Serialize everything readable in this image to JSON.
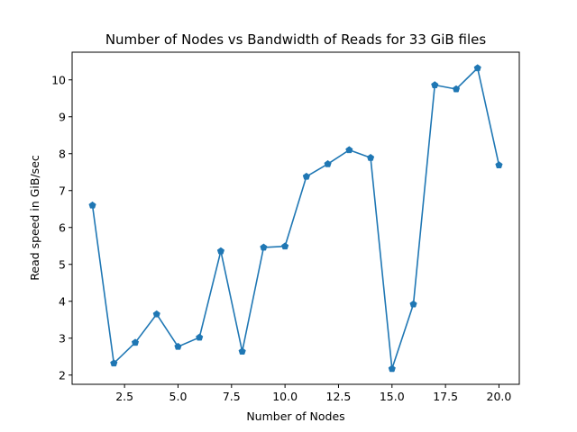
{
  "chart_data": {
    "type": "line",
    "title": "Number of Nodes vs Bandwidth of Reads for 33 GiB files",
    "xlabel": "Number of Nodes",
    "ylabel": "Read speed in GiB/sec",
    "xlim": [
      0.05,
      20.95
    ],
    "ylim": [
      1.75,
      10.75
    ],
    "xticks": [
      2.5,
      5.0,
      7.5,
      10.0,
      12.5,
      15.0,
      17.5,
      20.0
    ],
    "xtick_labels": [
      "2.5",
      "5.0",
      "7.5",
      "10.0",
      "12.5",
      "15.0",
      "17.5",
      "20.0"
    ],
    "yticks": [
      2,
      3,
      4,
      5,
      6,
      7,
      8,
      9,
      10
    ],
    "ytick_labels": [
      "2",
      "3",
      "4",
      "5",
      "6",
      "7",
      "8",
      "9",
      "10"
    ],
    "grid": false,
    "marker": "pentagon",
    "color": "#1f77b4",
    "series": [
      {
        "x": [
          1,
          2,
          3,
          4,
          5,
          6,
          7,
          8,
          9,
          10,
          11,
          12,
          13,
          14,
          15,
          16,
          17,
          18,
          19,
          20
        ],
        "y": [
          6.6,
          2.32,
          2.88,
          3.65,
          2.77,
          3.02,
          5.36,
          2.64,
          5.46,
          5.49,
          7.38,
          7.72,
          8.1,
          7.89,
          2.17,
          3.92,
          9.86,
          9.75,
          10.32,
          7.69
        ]
      }
    ]
  }
}
